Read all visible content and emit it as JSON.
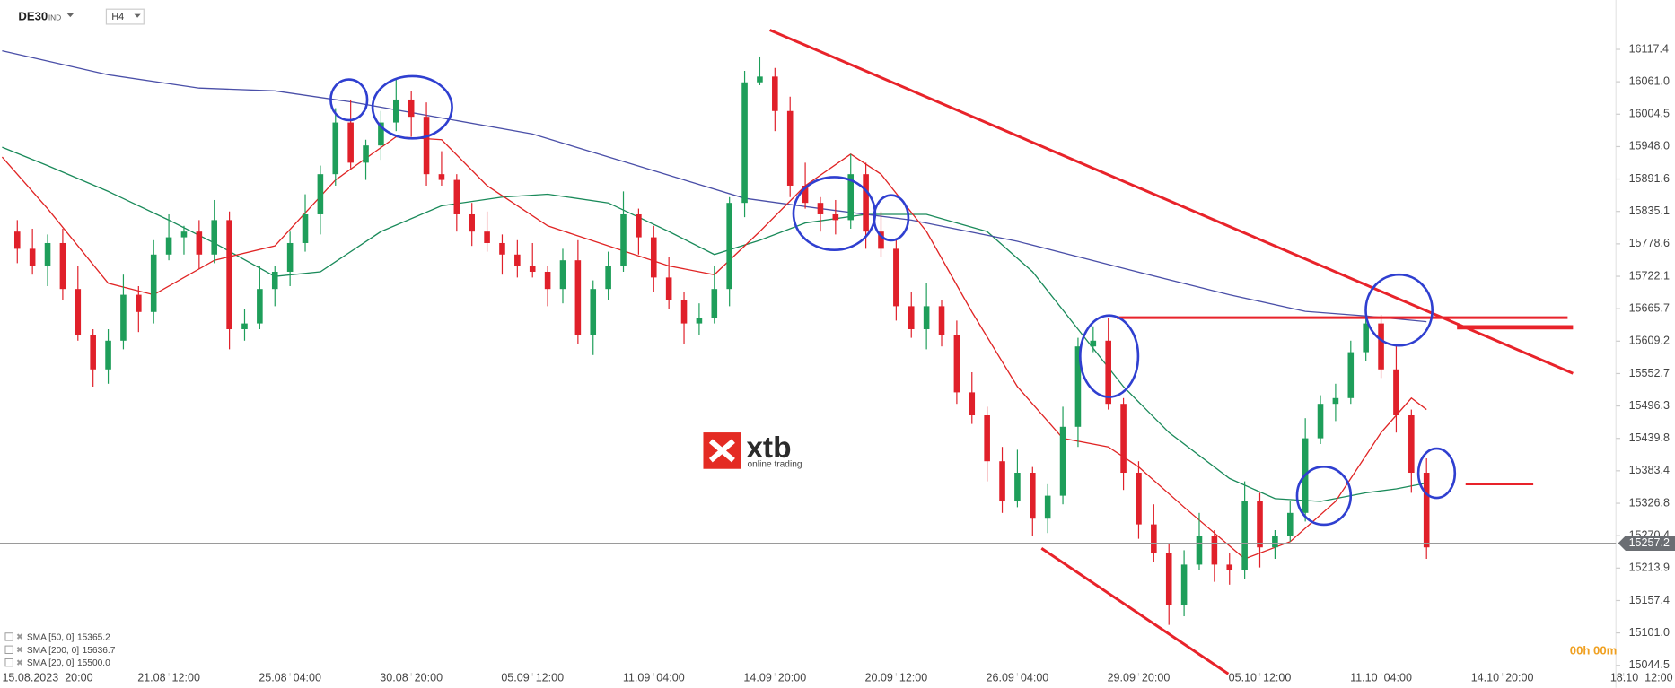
{
  "header": {
    "symbol": "DE30",
    "market": "IND",
    "timeframe": "H4"
  },
  "logo": {
    "brand": "xtb",
    "tagline": "online trading"
  },
  "countdown": "00h 00m",
  "chart_data": {
    "type": "candlestick",
    "up_color": "#1e9e5a",
    "down_color": "#e0202a",
    "x": [
      -2,
      -1,
      0,
      1,
      2,
      3,
      4,
      5,
      6,
      7,
      8,
      9,
      10,
      11,
      12,
      13,
      14,
      15,
      16,
      17,
      18,
      19,
      20,
      21,
      22,
      23,
      24,
      25,
      26,
      27,
      28,
      29,
      30,
      31,
      32,
      33,
      34,
      35,
      36,
      37,
      38,
      39,
      40,
      41,
      42,
      43,
      44,
      45,
      46,
      47,
      48,
      49,
      50,
      51,
      52,
      53,
      54,
      55,
      56,
      57,
      58,
      59,
      60,
      61,
      62,
      63,
      64,
      65,
      66,
      67,
      68,
      69,
      70,
      71,
      72,
      73,
      74,
      75,
      76,
      77,
      78,
      79,
      80,
      81,
      82,
      83,
      84,
      85,
      86,
      87,
      88,
      89,
      90,
      91
    ],
    "ohlc": [
      [
        15800,
        15820,
        15745,
        15770
      ],
      [
        15770,
        15805,
        15725,
        15740
      ],
      [
        15740,
        15795,
        15705,
        15780
      ],
      [
        15780,
        15805,
        15680,
        15700
      ],
      [
        15700,
        15740,
        15610,
        15620
      ],
      [
        15620,
        15630,
        15530,
        15560
      ],
      [
        15560,
        15630,
        15535,
        15610
      ],
      [
        15610,
        15725,
        15595,
        15690
      ],
      [
        15690,
        15705,
        15625,
        15660
      ],
      [
        15660,
        15785,
        15640,
        15760
      ],
      [
        15760,
        15830,
        15750,
        15790
      ],
      [
        15790,
        15810,
        15760,
        15800
      ],
      [
        15800,
        15820,
        15735,
        15760
      ],
      [
        15760,
        15855,
        15745,
        15820
      ],
      [
        15820,
        15835,
        15595,
        15630
      ],
      [
        15630,
        15665,
        15610,
        15640
      ],
      [
        15640,
        15740,
        15630,
        15700
      ],
      [
        15700,
        15740,
        15670,
        15730
      ],
      [
        15730,
        15800,
        15705,
        15780
      ],
      [
        15780,
        15865,
        15765,
        15830
      ],
      [
        15830,
        15915,
        15795,
        15900
      ],
      [
        15900,
        16015,
        15880,
        15990
      ],
      [
        15990,
        16030,
        15910,
        15920
      ],
      [
        15920,
        15960,
        15890,
        15950
      ],
      [
        15950,
        16010,
        15925,
        15990
      ],
      [
        15990,
        16065,
        15975,
        16030
      ],
      [
        16030,
        16045,
        15965,
        16000
      ],
      [
        16000,
        16025,
        15880,
        15900
      ],
      [
        15900,
        15940,
        15880,
        15890
      ],
      [
        15890,
        15900,
        15800,
        15830
      ],
      [
        15830,
        15850,
        15775,
        15800
      ],
      [
        15800,
        15835,
        15765,
        15780
      ],
      [
        15780,
        15795,
        15725,
        15760
      ],
      [
        15760,
        15785,
        15720,
        15740
      ],
      [
        15740,
        15780,
        15720,
        15730
      ],
      [
        15730,
        15740,
        15670,
        15700
      ],
      [
        15700,
        15770,
        15675,
        15750
      ],
      [
        15750,
        15785,
        15605,
        15620
      ],
      [
        15620,
        15715,
        15585,
        15700
      ],
      [
        15700,
        15765,
        15680,
        15740
      ],
      [
        15740,
        15870,
        15730,
        15830
      ],
      [
        15830,
        15840,
        15760,
        15790
      ],
      [
        15790,
        15810,
        15695,
        15720
      ],
      [
        15720,
        15755,
        15665,
        15680
      ],
      [
        15680,
        15695,
        15605,
        15640
      ],
      [
        15640,
        15675,
        15620,
        15650
      ],
      [
        15650,
        15740,
        15640,
        15700
      ],
      [
        15700,
        15860,
        15670,
        15850
      ],
      [
        15850,
        16080,
        15825,
        16060
      ],
      [
        16060,
        16105,
        16055,
        16070
      ],
      [
        16070,
        16085,
        15975,
        16010
      ],
      [
        16010,
        16035,
        15860,
        15880
      ],
      [
        15880,
        15920,
        15840,
        15850
      ],
      [
        15850,
        15860,
        15800,
        15830
      ],
      [
        15830,
        15855,
        15795,
        15820
      ],
      [
        15820,
        15935,
        15805,
        15900
      ],
      [
        15900,
        15920,
        15770,
        15800
      ],
      [
        15800,
        15835,
        15755,
        15770
      ],
      [
        15770,
        15785,
        15645,
        15670
      ],
      [
        15670,
        15695,
        15615,
        15630
      ],
      [
        15630,
        15710,
        15595,
        15670
      ],
      [
        15670,
        15680,
        15600,
        15620
      ],
      [
        15620,
        15645,
        15500,
        15520
      ],
      [
        15520,
        15555,
        15465,
        15480
      ],
      [
        15480,
        15495,
        15365,
        15400
      ],
      [
        15400,
        15425,
        15310,
        15330
      ],
      [
        15330,
        15420,
        15320,
        15380
      ],
      [
        15380,
        15390,
        15270,
        15300
      ],
      [
        15300,
        15360,
        15275,
        15340
      ],
      [
        15340,
        15495,
        15325,
        15460
      ],
      [
        15460,
        15615,
        15425,
        15600
      ],
      [
        15600,
        15635,
        15590,
        15610
      ],
      [
        15610,
        15650,
        15490,
        15500
      ],
      [
        15500,
        15510,
        15350,
        15380
      ],
      [
        15380,
        15400,
        15265,
        15290
      ],
      [
        15290,
        15325,
        15225,
        15240
      ],
      [
        15240,
        15255,
        15115,
        15150
      ],
      [
        15150,
        15245,
        15130,
        15220
      ],
      [
        15220,
        15310,
        15210,
        15270
      ],
      [
        15270,
        15280,
        15190,
        15220
      ],
      [
        15220,
        15240,
        15185,
        15210
      ],
      [
        15210,
        15365,
        15195,
        15330
      ],
      [
        15330,
        15345,
        15215,
        15250
      ],
      [
        15250,
        15280,
        15230,
        15270
      ],
      [
        15270,
        15330,
        15260,
        15310
      ],
      [
        15310,
        15475,
        15295,
        15440
      ],
      [
        15440,
        15515,
        15430,
        15500
      ],
      [
        15500,
        15535,
        15470,
        15510
      ],
      [
        15510,
        15610,
        15500,
        15590
      ],
      [
        15590,
        15675,
        15575,
        15640
      ],
      [
        15640,
        15655,
        15545,
        15560
      ],
      [
        15560,
        15600,
        15450,
        15480
      ],
      [
        15480,
        15490,
        15345,
        15380
      ],
      [
        15380,
        15405,
        15230,
        15250
      ]
    ],
    "series": [
      {
        "name": "SMA [50, 0]",
        "color": "#1a8a5a",
        "legend_value": 15365.2,
        "x": [
          -3,
          0,
          4,
          8,
          11,
          15,
          18,
          22,
          26,
          30,
          33,
          37,
          41,
          44,
          47,
          50,
          54,
          58,
          62,
          65,
          68,
          71,
          74,
          78,
          81,
          84,
          87,
          89,
          91
        ],
        "values": [
          15947,
          15915,
          15870,
          15820,
          15780,
          15722,
          15730,
          15800,
          15845,
          15860,
          15865,
          15850,
          15800,
          15760,
          15785,
          15815,
          15830,
          15830,
          15800,
          15730,
          15630,
          15530,
          15450,
          15370,
          15335,
          15330,
          15345,
          15352,
          15362
        ]
      },
      {
        "name": "SMA [200, 0]",
        "color": "#4a4fa8",
        "legend_value": 15636.7,
        "x": [
          -3,
          4,
          10,
          15,
          20,
          26,
          32,
          39,
          46,
          51,
          57,
          64,
          71,
          78,
          83,
          87,
          91
        ],
        "values": [
          16115,
          16073,
          16050,
          16045,
          16026,
          15998,
          15970,
          15914,
          15858,
          15840,
          15820,
          15783,
          15736,
          15690,
          15661,
          15653,
          15643
        ]
      },
      {
        "name": "SMA [20, 0]",
        "color": "#e02424",
        "legend_value": {
          "value": 15500,
          "label": "15500.0"
        },
        "x": [
          -3,
          0,
          4,
          7,
          11,
          15,
          19,
          23,
          26,
          29,
          33,
          37,
          41,
          44,
          47,
          50,
          53,
          55,
          58,
          61,
          64,
          67,
          70,
          72,
          75,
          79,
          82,
          85,
          88,
          90,
          91
        ],
        "values": [
          15930,
          15840,
          15710,
          15690,
          15750,
          15775,
          15890,
          15965,
          15960,
          15880,
          15810,
          15775,
          15740,
          15725,
          15800,
          15880,
          15935,
          15900,
          15800,
          15660,
          15530,
          15440,
          15425,
          15390,
          15320,
          15230,
          15260,
          15330,
          15450,
          15510,
          15490
        ]
      }
    ],
    "current_price": 15257.2,
    "xlim": [
      -3,
      103.5
    ],
    "ylim": [
      15026,
      16194
    ],
    "xticks": [
      {
        "value": 0,
        "label": "15.08.2023  20:00"
      },
      {
        "value": 8,
        "label": "21.08  12:00"
      },
      {
        "value": 16,
        "label": "25.08  04:00"
      },
      {
        "value": 24,
        "label": "30.08  20:00"
      },
      {
        "value": 32,
        "label": "05.09  12:00"
      },
      {
        "value": 40,
        "label": "11.09  04:00"
      },
      {
        "value": 48,
        "label": "14.09  20:00"
      },
      {
        "value": 56,
        "label": "20.09  12:00"
      },
      {
        "value": 64,
        "label": "26.09  04:00"
      },
      {
        "value": 72,
        "label": "29.09  20:00"
      },
      {
        "value": 80,
        "label": "05.10  12:00"
      },
      {
        "value": 88,
        "label": "11.10  04:00"
      },
      {
        "value": 96,
        "label": "14.10  20:00"
      },
      {
        "value": 104,
        "label": "18.10  12:00"
      }
    ],
    "yticks": [
      16117.4,
      {
        "value": 16061,
        "label": "16061.0"
      },
      16004.5,
      {
        "value": 15948,
        "label": "15948.0"
      },
      15891.6,
      15835.1,
      15778.6,
      15722.1,
      15665.7,
      15609.2,
      15552.7,
      15496.3,
      15439.8,
      15383.4,
      15326.8,
      15270.4,
      15213.9,
      15157.4,
      {
        "value": 15101,
        "label": "15101.0"
      },
      15044.5
    ]
  }
}
